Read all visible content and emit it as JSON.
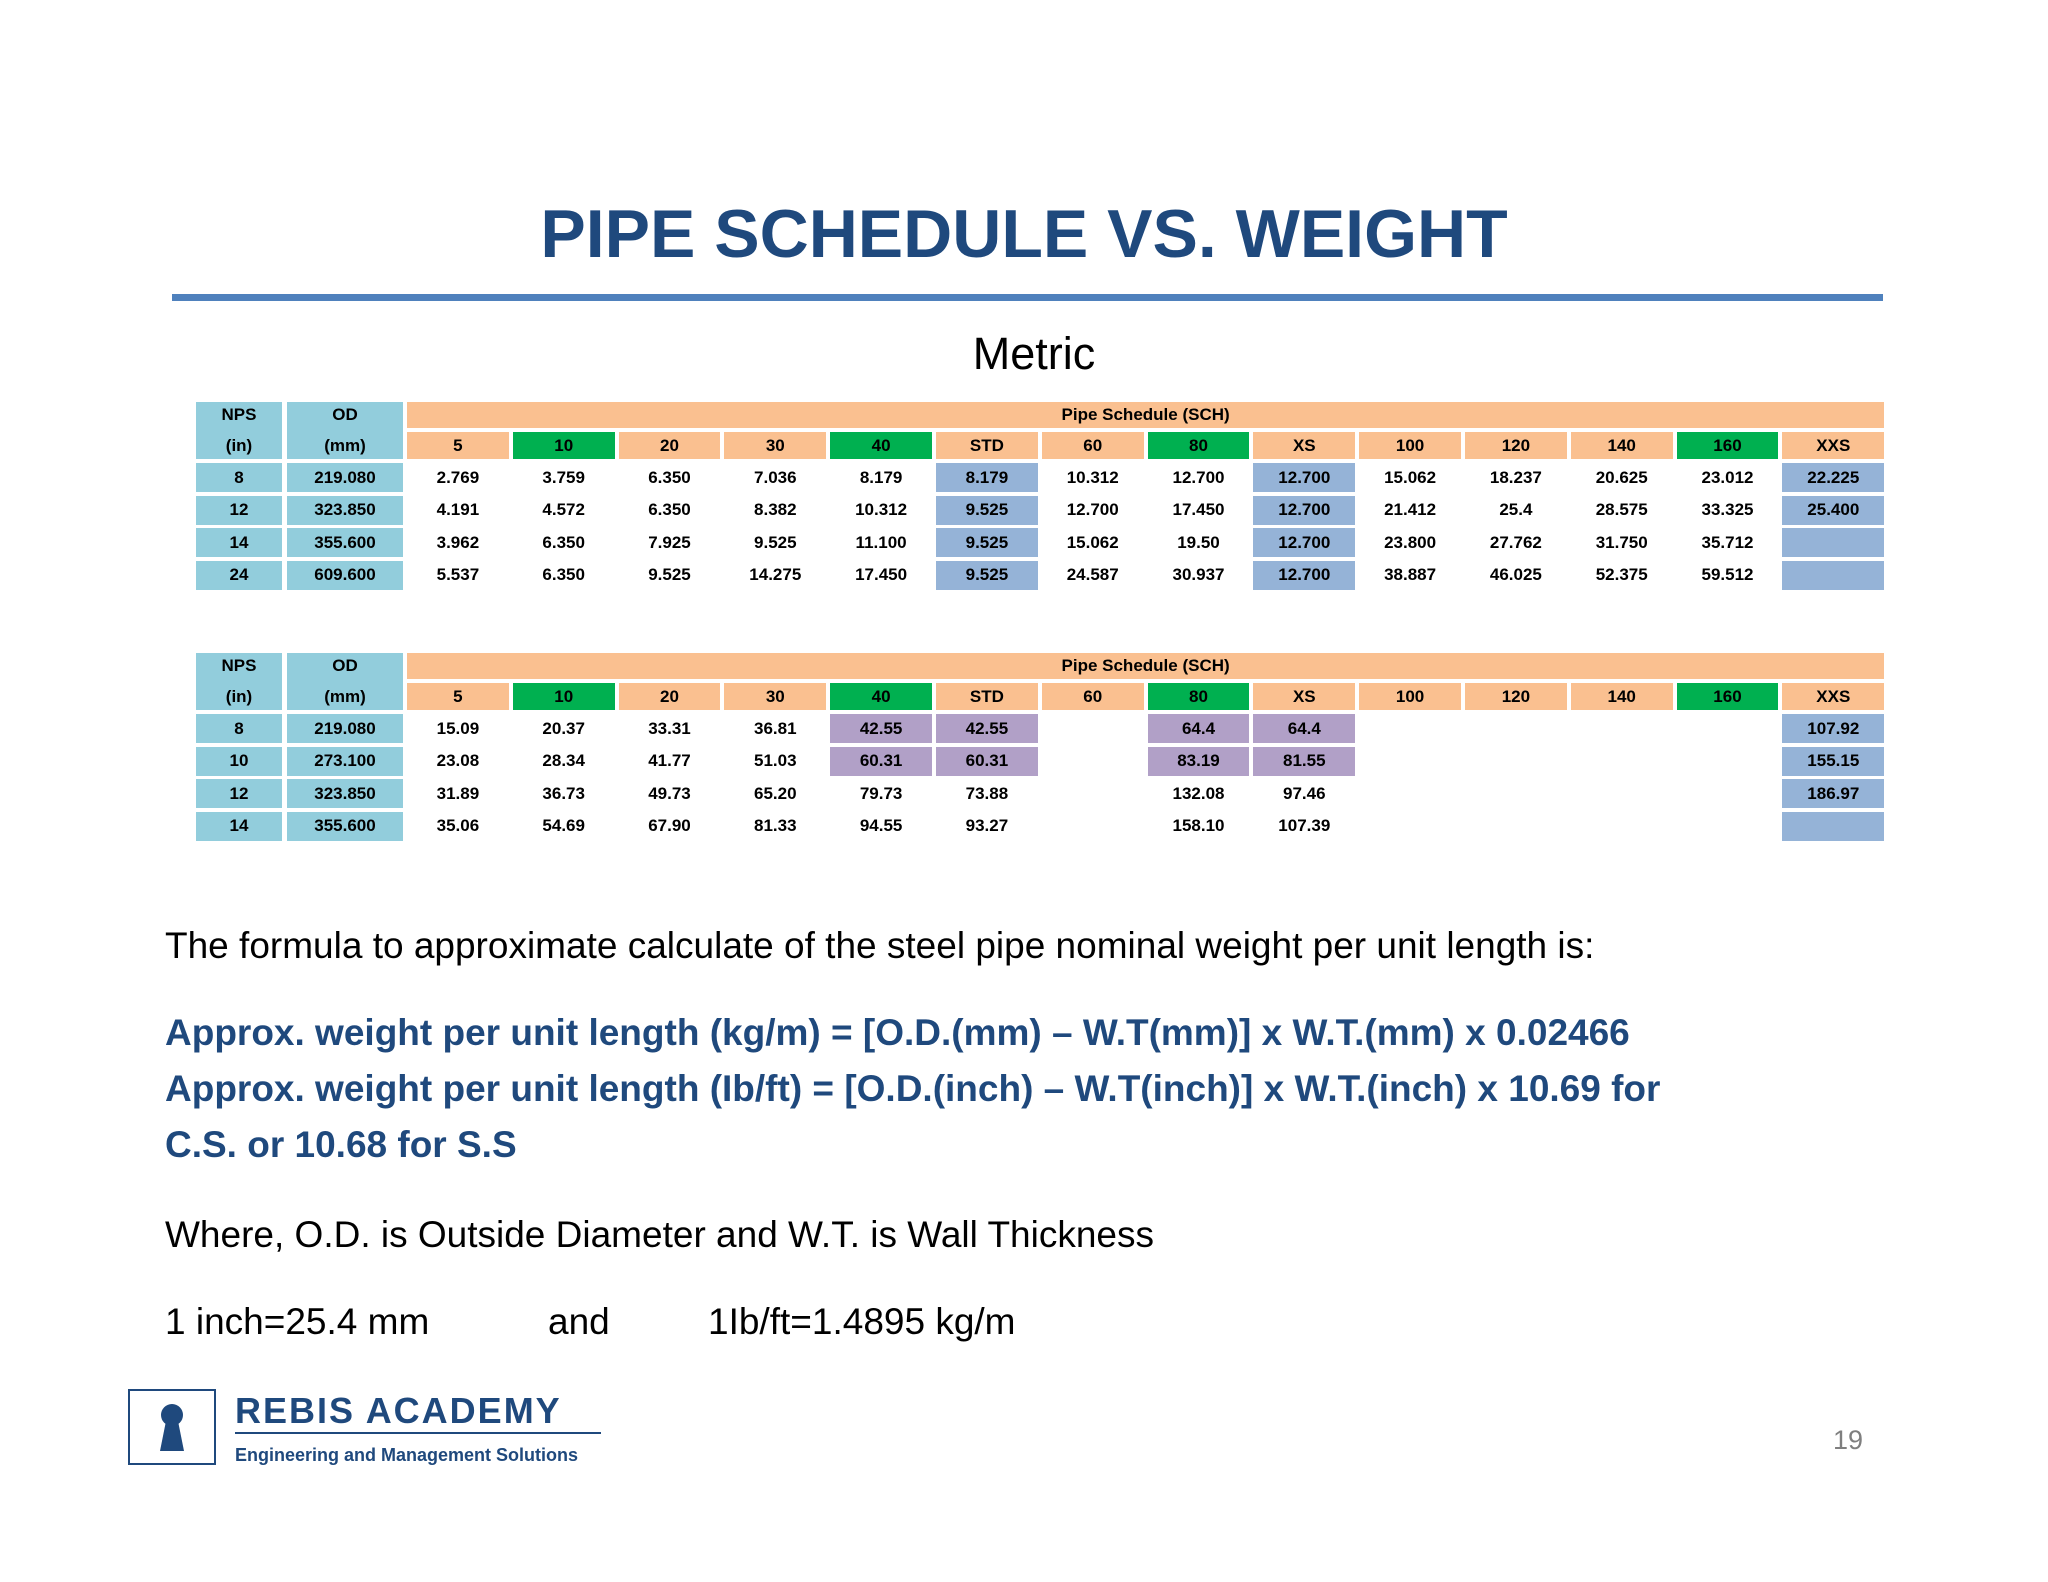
{
  "header": {
    "title": "PIPE SCHEDULE VS. WEIGHT",
    "subtitle": "Metric"
  },
  "tables": [
    {
      "nps_label": "NPS",
      "nps_unit": "(in)",
      "od_label": "OD",
      "od_unit": "(mm)",
      "group_label": "Pipe Schedule (SCH)",
      "schedules": [
        "5",
        "10",
        "20",
        "30",
        "40",
        "STD",
        "60",
        "80",
        "XS",
        "100",
        "120",
        "140",
        "160",
        "XXS"
      ],
      "rows": [
        [
          "8",
          "219.080",
          "2.769",
          "3.759",
          "6.350",
          "7.036",
          "8.179",
          "8.179",
          "10.312",
          "12.700",
          "12.700",
          "15.062",
          "18.237",
          "20.625",
          "23.012",
          "22.225"
        ],
        [
          "12",
          "323.850",
          "4.191",
          "4.572",
          "6.350",
          "8.382",
          "10.312",
          "9.525",
          "12.700",
          "17.450",
          "12.700",
          "21.412",
          "25.4",
          "28.575",
          "33.325",
          "25.400"
        ],
        [
          "14",
          "355.600",
          "3.962",
          "6.350",
          "7.925",
          "9.525",
          "11.100",
          "9.525",
          "15.062",
          "19.50",
          "12.700",
          "23.800",
          "27.762",
          "31.750",
          "35.712",
          null
        ],
        [
          "24",
          "609.600",
          "5.537",
          "6.350",
          "9.525",
          "14.275",
          "17.450",
          "9.525",
          "24.587",
          "30.937",
          "12.700",
          "38.887",
          "46.025",
          "52.375",
          "59.512",
          null
        ]
      ]
    },
    {
      "nps_label": "NPS",
      "nps_unit": "(in)",
      "od_label": "OD",
      "od_unit": "(mm)",
      "group_label": "Pipe Schedule (SCH)",
      "schedules": [
        "5",
        "10",
        "20",
        "30",
        "40",
        "STD",
        "60",
        "80",
        "XS",
        "100",
        "120",
        "140",
        "160",
        "XXS"
      ],
      "rows": [
        [
          "8",
          "219.080",
          "15.09",
          "20.37",
          "33.31",
          "36.81",
          "42.55",
          "42.55",
          null,
          "64.4",
          "64.4",
          null,
          null,
          null,
          null,
          "107.92"
        ],
        [
          "10",
          "273.100",
          "23.08",
          "28.34",
          "41.77",
          "51.03",
          "60.31",
          "60.31",
          null,
          "83.19",
          "81.55",
          null,
          null,
          null,
          null,
          "155.15"
        ],
        [
          "12",
          "323.850",
          "31.89",
          "36.73",
          "49.73",
          "65.20",
          "79.73",
          "73.88",
          null,
          "132.08",
          "97.46",
          null,
          null,
          null,
          null,
          "186.97"
        ],
        [
          "14",
          "355.600",
          "35.06",
          "54.69",
          "67.90",
          "81.33",
          "94.55",
          "93.27",
          null,
          "158.10",
          "107.39",
          null,
          null,
          null,
          null,
          null
        ]
      ]
    }
  ],
  "body": {
    "intro": "The formula to approximate calculate of the steel pipe nominal weight per unit length is:",
    "formula_lines": [
      "Approx. weight per unit length (kg/m) = [O.D.(mm) – W.T(mm)] x W.T.(mm) x 0.02466",
      "Approx. weight per unit length (Ib/ft) = [O.D.(inch) – W.T(inch)] x W.T.(inch) x 10.69 for",
      "C.S. or 10.68 for S.S"
    ],
    "where": "Where, O.D. is Outside Diameter and W.T. is Wall Thickness",
    "conversion": [
      "1 inch=25.4 mm",
      "and",
      "1Ib/ft=1.4895 kg/m"
    ]
  },
  "footer": {
    "logo_name": "REBIS ACADEMY",
    "logo_tagline": "Engineering and Management Solutions",
    "page_number": "19"
  }
}
